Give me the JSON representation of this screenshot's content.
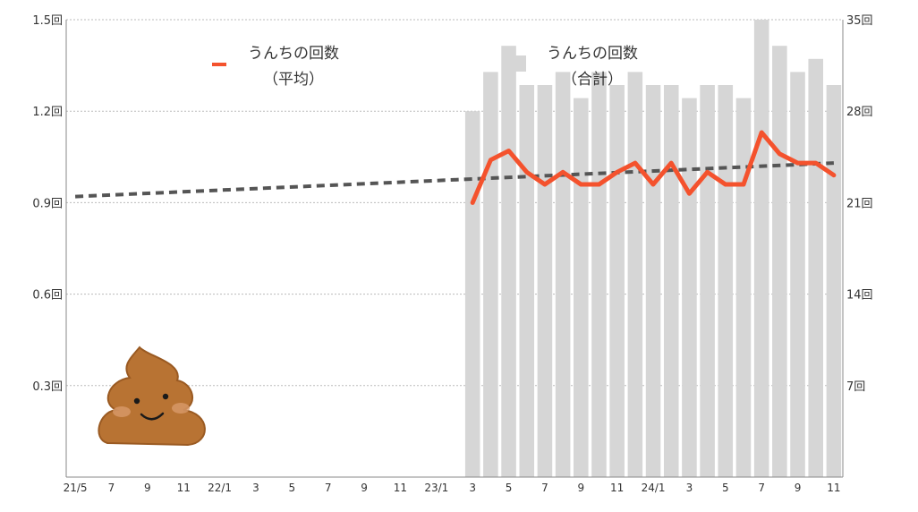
{
  "chart_data": {
    "type": "bar+line",
    "title": "",
    "x_tick_labels": [
      "21/5",
      "7",
      "9",
      "11",
      "22/1",
      "3",
      "5",
      "7",
      "9",
      "11",
      "23/1",
      "3",
      "5",
      "7",
      "9",
      "11",
      "24/1",
      "3",
      "5",
      "7",
      "9",
      "11"
    ],
    "y_left": {
      "ticks": [
        "0.3回",
        "0.6回",
        "0.9回",
        "1.2回",
        "1.5回"
      ],
      "ylim": [
        0,
        1.5
      ]
    },
    "y_right": {
      "ticks": [
        "7回",
        "14回",
        "21回",
        "28回",
        "35回"
      ],
      "ylim": [
        0,
        35
      ]
    },
    "months": [
      "21/5",
      "21/6",
      "21/7",
      "21/8",
      "21/9",
      "21/10",
      "21/11",
      "21/12",
      "22/1",
      "22/2",
      "22/3",
      "22/4",
      "22/5",
      "22/6",
      "22/7",
      "22/8",
      "22/9",
      "22/10",
      "22/11",
      "22/12",
      "23/1",
      "23/2",
      "23/3",
      "23/4",
      "23/5",
      "23/6",
      "23/7",
      "23/8",
      "23/9",
      "23/10",
      "23/11",
      "23/12",
      "24/1",
      "24/2",
      "24/3",
      "24/4",
      "24/5",
      "24/6",
      "24/7",
      "24/8",
      "24/9",
      "24/10",
      "24/11"
    ],
    "series": [
      {
        "name_line1": "うんちの回数",
        "name_line2": "（合計）",
        "kind": "bar",
        "axis": "right",
        "color": "#d6d6d6",
        "values": [
          null,
          null,
          null,
          null,
          null,
          null,
          null,
          null,
          null,
          null,
          null,
          null,
          null,
          null,
          null,
          null,
          null,
          null,
          null,
          null,
          null,
          null,
          28,
          31,
          33,
          30,
          30,
          31,
          29,
          31,
          30,
          31,
          30,
          30,
          29,
          30,
          30,
          29,
          35,
          33,
          31,
          32,
          30
        ]
      },
      {
        "name_line1": "うんちの回数",
        "name_line2": "（平均）",
        "kind": "line",
        "axis": "left",
        "color": "#f4522d",
        "values": [
          null,
          null,
          null,
          null,
          null,
          null,
          null,
          null,
          null,
          null,
          null,
          null,
          null,
          null,
          null,
          null,
          null,
          null,
          null,
          null,
          null,
          null,
          0.9,
          1.04,
          1.07,
          1.0,
          0.96,
          1.0,
          0.96,
          0.96,
          1.0,
          1.03,
          0.96,
          1.03,
          0.93,
          1.0,
          0.96,
          0.96,
          1.13,
          1.06,
          1.03,
          1.03,
          0.99
        ]
      }
    ],
    "trendline": {
      "style": "dashed",
      "color": "#555555",
      "y_start": 0.92,
      "y_end": 1.03
    },
    "grid": true,
    "legend_placement": "top",
    "decoration": "poop-mascot-icon"
  }
}
